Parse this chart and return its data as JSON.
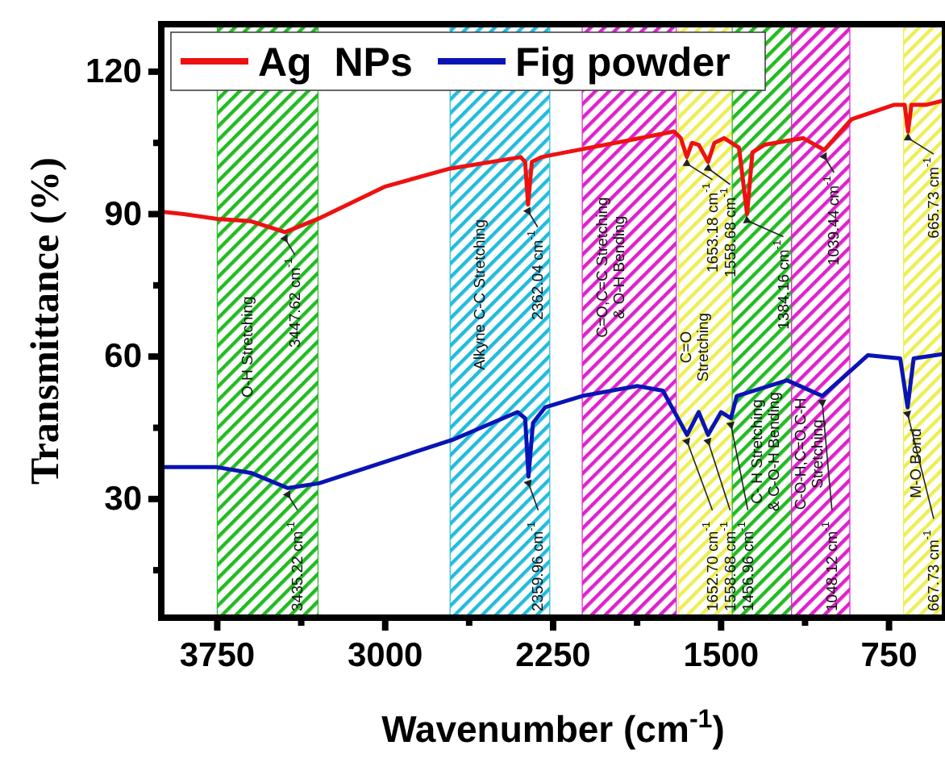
{
  "chart_data": {
    "type": "line",
    "xlabel": "Wavenumber (cm$^{-1}$)",
    "ylabel": "Transmittance (%)",
    "xlim": [
      4000,
      500
    ],
    "ylim": [
      5,
      130
    ],
    "xticks": [
      3750,
      {
        "value": 3375,
        "label": null
      },
      3000,
      {
        "value": 2625,
        "label": null
      },
      2250,
      {
        "value": 1875,
        "label": null
      },
      1500,
      {
        "value": 1125,
        "label": null
      },
      750
    ],
    "yticks": [
      {
        "value": 15,
        "label": null
      },
      30,
      {
        "value": 45,
        "label": null
      },
      60,
      {
        "value": 75,
        "label": null
      },
      90,
      {
        "value": 105,
        "label": null
      },
      120
    ],
    "legend": "top left",
    "series": [
      {
        "name": "Ag  NPs",
        "color": "#ee1111",
        "x": [
          4000,
          3900,
          3750,
          3600,
          3447,
          3300,
          3000,
          2719,
          2395,
          2375,
          2362,
          2345,
          2301,
          2250,
          1861,
          1710,
          1680,
          1653,
          1630,
          1600,
          1558,
          1530,
          1486,
          1420,
          1384,
          1360,
          1306,
          1133,
          1039,
          917,
          729,
          680,
          665,
          650,
          585,
          500
        ],
        "values": [
          90.5,
          90,
          89,
          88.5,
          86.2,
          89,
          95.8,
          99.5,
          102,
          101,
          92,
          101,
          102,
          102.5,
          106,
          107.4,
          106,
          102,
          105,
          104.6,
          101,
          105,
          106,
          104,
          90,
          103,
          104.6,
          106,
          103.5,
          110,
          113,
          113,
          107.4,
          113,
          113,
          114
        ]
      },
      {
        "name": "Fig powder",
        "color": "#0a14b4",
        "x": [
          4000,
          3750,
          3600,
          3435,
          3296,
          2697,
          2409,
          2375,
          2360,
          2340,
          2286,
          2120,
          1875,
          1760,
          1652,
          1600,
          1558,
          1500,
          1456,
          1430,
          1205,
          1048,
          917,
          844,
          700,
          667,
          640,
          500
        ],
        "values": [
          36.7,
          36.7,
          35.5,
          32.3,
          33.3,
          42.5,
          48.3,
          47,
          34.7,
          46,
          49.3,
          51.7,
          53.8,
          52.8,
          43.5,
          48.3,
          43.5,
          48.3,
          47,
          51.7,
          55,
          51.7,
          57.2,
          60.3,
          59.6,
          49.3,
          59.6,
          60.6
        ]
      }
    ],
    "bands": [
      {
        "axis": "x",
        "from": 3750,
        "to": 3300,
        "label": "O-H Stretching",
        "color": "#22bb22"
      },
      {
        "axis": "x",
        "from": 2710,
        "to": 2265,
        "label": "Alkyne C-C Stretching",
        "color": "#22bbdd"
      },
      {
        "axis": "x",
        "from": 2120,
        "to": 1700,
        "label": "C=O,C=C Stretching & O-H Bending",
        "color": "#dd22cc"
      },
      {
        "axis": "x",
        "from": 1690,
        "to": 1450,
        "label": "C=O Stretching",
        "color": "#eeee55"
      },
      {
        "axis": "x",
        "from": 1450,
        "to": 1185,
        "label": "C- H Stretching & C-O-H Bending",
        "color": "#22bb22"
      },
      {
        "axis": "x",
        "from": 1185,
        "to": 925,
        "label": "C-O-H,C=O,C-H Stretching",
        "color": "#dd22cc"
      },
      {
        "axis": "x",
        "from": 685,
        "to": 500,
        "label": "M-O Bond",
        "color": "#eeee55"
      }
    ],
    "annotations": [
      {
        "text": "3447.62 cm$^{-1}$",
        "x": 3447,
        "y": 86.2
      },
      {
        "text": "2362.04 cm$^{-1}$",
        "x": 2362,
        "y": 92
      },
      {
        "text": "1653.18 cm$^{-1}$",
        "x": 1653,
        "y": 102
      },
      {
        "text": "1558.68 cm$^{-1}$",
        "x": 1558,
        "y": 101
      },
      {
        "text": "1384.16 cm$^{-1}$",
        "x": 1384,
        "y": 90
      },
      {
        "text": "1039.44 cm$^{-1}$",
        "x": 1039,
        "y": 103.5
      },
      {
        "text": "665.73 cm$^{-1}$",
        "x": 665,
        "y": 107.4
      },
      {
        "text": "3435.22 cm$^{-1}$",
        "x": 3435,
        "y": 32.3
      },
      {
        "text": "2359.96 cm$^{-1}$",
        "x": 2360,
        "y": 34.7
      },
      {
        "text": "1652.70 cm$^{-1}$",
        "x": 1652,
        "y": 43.5
      },
      {
        "text": "1558.68 cm$^{-1}$",
        "x": 1558,
        "y": 43.5
      },
      {
        "text": "1456.96 cm$^{-1}$",
        "x": 1456,
        "y": 47
      },
      {
        "text": "1048.12 cm$^{-1}$",
        "x": 1048,
        "y": 51.7
      },
      {
        "text": "667.73 cm$^{-1}$",
        "x": 667,
        "y": 49.3
      }
    ]
  }
}
